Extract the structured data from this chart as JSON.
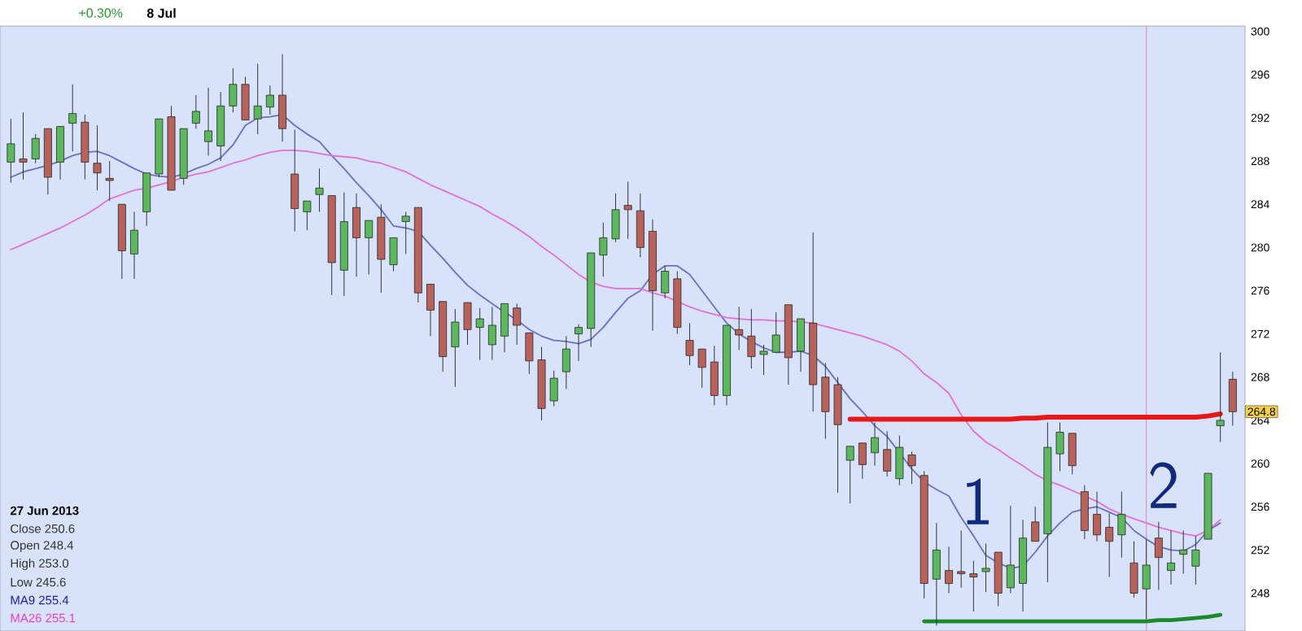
{
  "chart_data": {
    "type": "candlestick",
    "categories": [
      null,
      null,
      null,
      null,
      null,
      null,
      null,
      null,
      null,
      null,
      null,
      null,
      null,
      null,
      null,
      null,
      null,
      null,
      null,
      null,
      null,
      null,
      null,
      null,
      null,
      null,
      null,
      null,
      null,
      null,
      null,
      null,
      null,
      null,
      null,
      null,
      null,
      null,
      null,
      null,
      null,
      null,
      null,
      null,
      null,
      null,
      null,
      null,
      null,
      null,
      null,
      null,
      null,
      null,
      null,
      null,
      null,
      null,
      null,
      null,
      null,
      null,
      null,
      null,
      null,
      null,
      null,
      null,
      null,
      null,
      null,
      null,
      null,
      null,
      null,
      null,
      null,
      null,
      null,
      null,
      null,
      null,
      null,
      null,
      null,
      null,
      null,
      null,
      null,
      null,
      null,
      null,
      null,
      null,
      null,
      null,
      null,
      null,
      null,
      null
    ],
    "ohlc": [
      [
        287.9,
        291.9,
        286.0,
        289.6
      ],
      [
        288.2,
        292.5,
        286.3,
        287.9
      ],
      [
        288.2,
        290.5,
        287.8,
        290.1
      ],
      [
        291.0,
        291.0,
        284.9,
        286.5
      ],
      [
        287.9,
        291.2,
        286.3,
        291.2
      ],
      [
        291.5,
        295.1,
        288.9,
        292.4
      ],
      [
        291.6,
        292.3,
        286.3,
        287.9
      ],
      [
        287.8,
        291.3,
        285.3,
        286.9
      ],
      [
        286.4,
        288.0,
        284.3,
        286.2
      ],
      [
        284.0,
        284.0,
        277.1,
        279.7
      ],
      [
        279.4,
        283.3,
        277.1,
        281.6
      ],
      [
        283.3,
        286.9,
        282.0,
        286.9
      ],
      [
        286.8,
        291.9,
        286.5,
        291.9
      ],
      [
        292.1,
        293.1,
        285.3,
        285.3
      ],
      [
        286.4,
        291.0,
        285.8,
        291.0
      ],
      [
        291.5,
        294.1,
        291.0,
        292.6
      ],
      [
        289.8,
        294.8,
        288.5,
        290.8
      ],
      [
        289.4,
        294.4,
        288.0,
        293.1
      ],
      [
        293.1,
        296.6,
        292.5,
        295.1
      ],
      [
        295.1,
        295.8,
        291.8,
        291.8
      ],
      [
        291.9,
        297.0,
        290.5,
        293.1
      ],
      [
        293.0,
        295.0,
        292.3,
        294.1
      ],
      [
        294.1,
        297.9,
        289.8,
        291.0
      ],
      [
        286.8,
        290.9,
        281.5,
        283.6
      ],
      [
        283.3,
        284.3,
        281.6,
        284.3
      ],
      [
        284.9,
        287.3,
        283.3,
        285.5
      ],
      [
        284.8,
        284.8,
        275.6,
        278.6
      ],
      [
        277.9,
        285.1,
        275.5,
        282.4
      ],
      [
        283.7,
        285.0,
        277.3,
        280.9
      ],
      [
        280.9,
        282.5,
        277.5,
        282.5
      ],
      [
        282.8,
        284.0,
        275.8,
        278.9
      ],
      [
        278.4,
        280.9,
        277.8,
        280.9
      ],
      [
        282.4,
        283.3,
        279.4,
        282.9
      ],
      [
        283.7,
        283.7,
        274.9,
        275.8
      ],
      [
        276.6,
        276.6,
        271.8,
        274.2
      ],
      [
        275.0,
        275.0,
        268.5,
        269.9
      ],
      [
        270.8,
        274.3,
        267.1,
        273.1
      ],
      [
        274.9,
        274.9,
        271.0,
        272.4
      ],
      [
        272.6,
        274.4,
        269.6,
        273.4
      ],
      [
        271.0,
        274.5,
        269.6,
        272.8
      ],
      [
        271.8,
        274.8,
        270.3,
        274.8
      ],
      [
        274.4,
        274.8,
        271.0,
        272.8
      ],
      [
        272.1,
        272.1,
        268.3,
        269.5
      ],
      [
        269.6,
        270.8,
        264.0,
        265.1
      ],
      [
        265.8,
        268.6,
        265.3,
        267.9
      ],
      [
        268.5,
        271.8,
        266.9,
        270.6
      ],
      [
        272.0,
        272.9,
        269.5,
        272.6
      ],
      [
        272.5,
        279.5,
        270.8,
        279.5
      ],
      [
        279.3,
        282.3,
        277.3,
        280.9
      ],
      [
        280.8,
        285.0,
        280.5,
        283.5
      ],
      [
        283.9,
        286.1,
        280.8,
        283.5
      ],
      [
        283.4,
        285.0,
        279.1,
        280.0
      ],
      [
        281.5,
        282.6,
        272.3,
        276.0
      ],
      [
        275.8,
        278.3,
        275.3,
        277.8
      ],
      [
        277.1,
        277.8,
        272.0,
        272.6
      ],
      [
        271.4,
        273.0,
        269.1,
        270.0
      ],
      [
        270.6,
        270.6,
        267.0,
        268.9
      ],
      [
        269.4,
        270.9,
        265.4,
        266.3
      ],
      [
        266.3,
        272.8,
        265.4,
        272.8
      ],
      [
        272.4,
        274.5,
        270.5,
        271.9
      ],
      [
        271.8,
        274.3,
        268.8,
        269.9
      ],
      [
        270.1,
        271.0,
        268.2,
        270.4
      ],
      [
        270.3,
        274.0,
        270.3,
        271.9
      ],
      [
        274.7,
        274.7,
        267.3,
        269.8
      ],
      [
        270.4,
        273.4,
        268.5,
        273.4
      ],
      [
        273.0,
        281.4,
        264.8,
        267.3
      ],
      [
        268.0,
        269.3,
        262.3,
        264.8
      ],
      [
        267.3,
        268.0,
        257.3,
        263.6
      ],
      [
        260.3,
        261.6,
        256.3,
        261.6
      ],
      [
        261.9,
        261.9,
        258.6,
        259.9
      ],
      [
        261.0,
        263.8,
        259.8,
        262.4
      ],
      [
        261.3,
        263.0,
        258.8,
        259.3
      ],
      [
        258.6,
        262.6,
        258.0,
        261.5
      ],
      [
        260.8,
        261.1,
        258.1,
        259.8
      ],
      [
        258.9,
        259.3,
        247.5,
        248.9
      ],
      [
        249.3,
        254.5,
        245.0,
        252.0
      ],
      [
        250.1,
        252.3,
        248.0,
        248.9
      ],
      [
        250.0,
        253.8,
        248.5,
        249.8
      ],
      [
        249.8,
        251.0,
        246.3,
        249.5
      ],
      [
        250.0,
        252.6,
        248.1,
        250.3
      ],
      [
        251.8,
        251.8,
        246.8,
        248.0
      ],
      [
        248.5,
        256.1,
        248.0,
        250.6
      ],
      [
        248.9,
        254.8,
        246.3,
        253.1
      ],
      [
        254.6,
        256.0,
        252.8,
        252.8
      ],
      [
        253.5,
        263.8,
        249.0,
        261.5
      ],
      [
        260.9,
        263.8,
        259.3,
        262.9
      ],
      [
        262.8,
        262.8,
        259.0,
        259.8
      ],
      [
        257.4,
        258.0,
        253.0,
        253.8
      ],
      [
        255.3,
        257.4,
        252.8,
        253.4
      ],
      [
        254.1,
        255.4,
        249.5,
        252.8
      ],
      [
        253.4,
        257.4,
        251.3,
        255.3
      ],
      [
        250.8,
        252.8,
        247.6,
        248.0
      ],
      [
        248.4,
        253.0,
        245.6,
        250.6
      ],
      [
        253.1,
        254.6,
        248.3,
        251.3
      ],
      [
        250.1,
        253.8,
        248.8,
        250.8
      ],
      [
        251.6,
        253.8,
        249.8,
        252.0
      ],
      [
        250.5,
        253.3,
        248.8,
        252.0
      ],
      [
        253.0,
        259.1,
        253.0,
        259.1
      ],
      [
        263.5,
        270.3,
        262.0,
        264.0
      ],
      [
        267.8,
        268.5,
        263.5,
        264.8
      ]
    ],
    "series": [
      {
        "type": "line",
        "color": "#6a6fc4",
        "values": [
          286.5,
          287.0,
          287.3,
          287.6,
          288.0,
          288.5,
          288.8,
          288.9,
          288.5,
          287.9,
          287.3,
          286.8,
          286.6,
          286.5,
          286.8,
          287.3,
          287.7,
          288.3,
          289.5,
          291.3,
          292.0,
          292.1,
          292.3,
          291.3,
          290.5,
          289.8,
          288.5,
          287.3,
          286.0,
          284.8,
          283.5,
          282.0,
          281.8,
          281.5,
          280.2,
          279.0,
          277.7,
          276.5,
          275.6,
          274.8,
          274.0,
          273.3,
          272.4,
          271.8,
          271.4,
          271.3,
          271.1,
          271.5,
          272.6,
          274.0,
          275.3,
          276.0,
          277.5,
          278.3,
          278.3,
          277.5,
          276.0,
          274.5,
          273.0,
          272.0,
          271.3,
          270.7,
          270.3,
          270.3,
          270.4,
          270.0,
          269.0,
          267.5,
          266.0,
          264.8,
          263.5,
          262.5,
          261.0,
          259.5,
          258.3,
          257.6,
          257.0,
          255.0,
          253.3,
          251.5,
          250.8,
          250.3,
          250.5,
          251.8,
          253.3,
          254.5,
          255.5,
          255.8,
          256.0,
          255.5,
          255.0,
          253.8,
          253.0,
          252.3,
          252.0,
          251.9,
          252.5,
          253.8,
          254.5,
          null
        ]
      },
      {
        "type": "line",
        "color": "#e070d8",
        "values": [
          279.8,
          280.3,
          280.8,
          281.3,
          281.8,
          282.4,
          283.0,
          283.7,
          284.5,
          284.9,
          285.3,
          285.5,
          285.8,
          286.1,
          286.5,
          286.8,
          287.0,
          287.4,
          287.8,
          288.1,
          288.5,
          288.8,
          289.0,
          289.0,
          288.9,
          288.7,
          288.5,
          288.4,
          288.3,
          288.0,
          287.8,
          287.4,
          287.0,
          286.4,
          285.8,
          285.3,
          284.8,
          284.3,
          283.8,
          283.1,
          282.5,
          281.8,
          281.0,
          280.1,
          279.3,
          278.4,
          277.5,
          276.8,
          276.4,
          276.2,
          276.2,
          276.2,
          275.8,
          275.5,
          275.0,
          274.5,
          274.1,
          273.8,
          273.5,
          273.4,
          273.3,
          273.3,
          273.2,
          273.2,
          273.1,
          273.0,
          272.7,
          272.4,
          272.1,
          271.8,
          271.4,
          271.0,
          270.4,
          269.5,
          268.3,
          267.5,
          266.5,
          264.5,
          263.0,
          262.0,
          261.3,
          260.5,
          259.8,
          259.0,
          258.4,
          258.0,
          257.5,
          257.0,
          256.5,
          255.8,
          255.3,
          254.9,
          254.5,
          254.1,
          253.8,
          253.5,
          253.3,
          253.8,
          254.8,
          null
        ]
      },
      {
        "type": "line",
        "color": "#e81818",
        "values": [
          null,
          null,
          null,
          null,
          null,
          null,
          null,
          null,
          null,
          null,
          null,
          null,
          null,
          null,
          null,
          null,
          null,
          null,
          null,
          null,
          null,
          null,
          null,
          null,
          null,
          null,
          null,
          null,
          null,
          null,
          null,
          null,
          null,
          null,
          null,
          null,
          null,
          null,
          null,
          null,
          null,
          null,
          null,
          null,
          null,
          null,
          null,
          null,
          null,
          null,
          null,
          null,
          null,
          null,
          null,
          null,
          null,
          null,
          null,
          null,
          null,
          null,
          null,
          null,
          null,
          null,
          null,
          null,
          264.1,
          264.1,
          264.1,
          264.1,
          264.1,
          264.1,
          264.1,
          264.1,
          264.1,
          264.1,
          264.1,
          264.1,
          264.1,
          264.1,
          264.2,
          264.2,
          264.3,
          264.3,
          264.3,
          264.3,
          264.3,
          264.3,
          264.3,
          264.3,
          264.3,
          264.3,
          264.3,
          264.3,
          264.3,
          264.4,
          264.6,
          null
        ]
      },
      {
        "type": "line",
        "color": "#1a8a2a",
        "values": [
          null,
          null,
          null,
          null,
          null,
          null,
          null,
          null,
          null,
          null,
          null,
          null,
          null,
          null,
          null,
          null,
          null,
          null,
          null,
          null,
          null,
          null,
          null,
          null,
          null,
          null,
          null,
          null,
          null,
          null,
          null,
          null,
          null,
          null,
          null,
          null,
          null,
          null,
          null,
          null,
          null,
          null,
          null,
          null,
          null,
          null,
          null,
          null,
          null,
          null,
          null,
          null,
          null,
          null,
          null,
          null,
          null,
          null,
          null,
          null,
          null,
          null,
          null,
          null,
          null,
          null,
          null,
          null,
          null,
          null,
          null,
          null,
          null,
          null,
          245.4,
          245.4,
          245.4,
          245.4,
          245.4,
          245.4,
          245.4,
          245.4,
          245.4,
          245.4,
          245.4,
          245.4,
          245.4,
          245.4,
          245.4,
          245.4,
          245.4,
          245.4,
          245.4,
          245.5,
          245.5,
          245.6,
          245.7,
          245.8,
          246.0,
          null
        ]
      }
    ],
    "ylim": [
      244.5,
      300.5
    ],
    "yticks": [
      248,
      252,
      256,
      260,
      264,
      268,
      272,
      276,
      280,
      284,
      288,
      292,
      296,
      300
    ],
    "tick_labels": "y",
    "annotations": [
      "+0.30%",
      "8 Jul",
      "27 Jun 2013",
      "Close 250.6",
      "Open 248.4",
      "High 253.0",
      "Low 245.6",
      "MA9 255.4",
      "MA26 255.1",
      {
        "text": "264.8",
        "y": 264.8
      },
      "1",
      "2"
    ]
  }
}
